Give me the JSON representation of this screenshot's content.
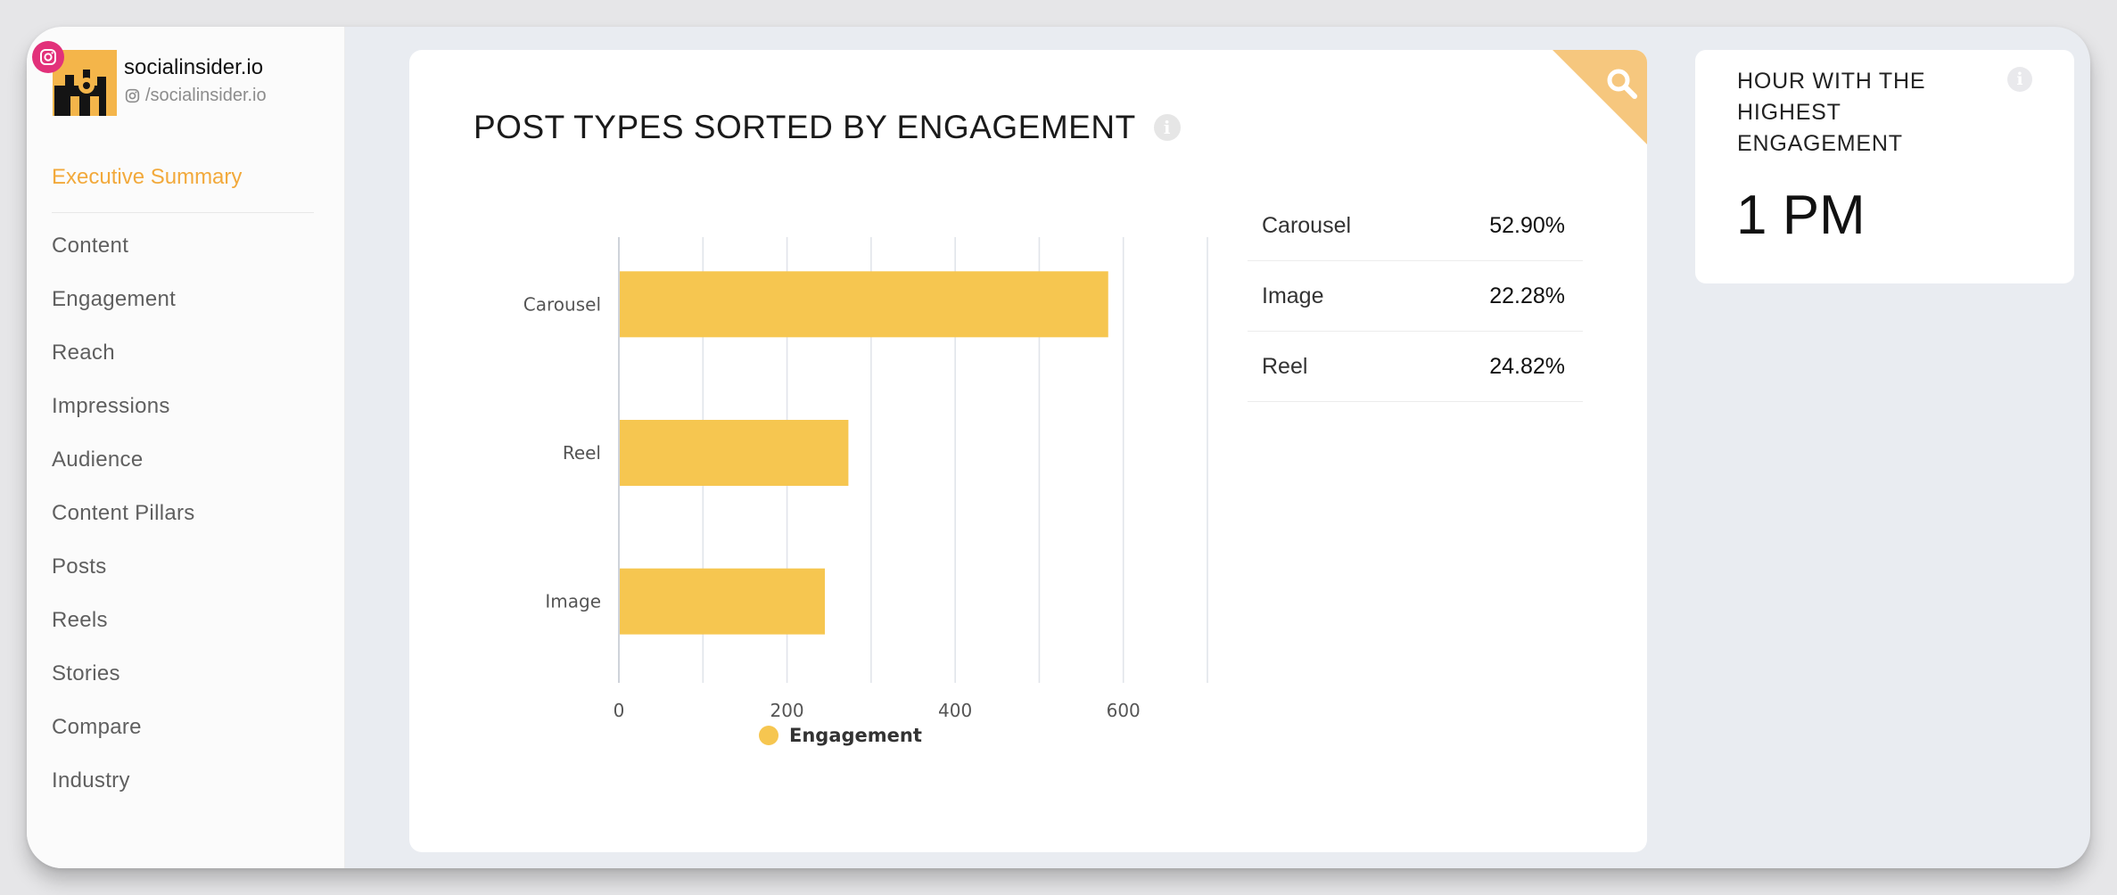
{
  "profile": {
    "name": "socialinsider.io",
    "handle": "/socialinsider.io",
    "platform_icon": "instagram-icon"
  },
  "sidebar": {
    "active_item": "Executive Summary",
    "items": [
      {
        "label": "Content"
      },
      {
        "label": "Engagement"
      },
      {
        "label": "Reach"
      },
      {
        "label": "Impressions"
      },
      {
        "label": "Audience"
      },
      {
        "label": "Content Pillars"
      },
      {
        "label": "Posts"
      },
      {
        "label": "Reels"
      },
      {
        "label": "Stories"
      },
      {
        "label": "Compare"
      },
      {
        "label": "Industry"
      }
    ]
  },
  "main_card": {
    "title": "POST TYPES SORTED BY ENGAGEMENT",
    "info_icon": "info-icon",
    "corner_icon": "search-icon"
  },
  "chart_data": {
    "type": "bar",
    "orientation": "horizontal",
    "categories": [
      "Carousel",
      "Reel",
      "Image"
    ],
    "series": [
      {
        "name": "Engagement",
        "values": [
          582,
          273,
          245
        ]
      }
    ],
    "xlim": [
      0,
      700
    ],
    "xticks": [
      0,
      200,
      400,
      600
    ],
    "grid": true,
    "legend": "bottom",
    "title": "",
    "xlabel": "",
    "ylabel": ""
  },
  "stats": [
    {
      "label": "Carousel",
      "value": "52.90%"
    },
    {
      "label": "Image",
      "value": "22.28%"
    },
    {
      "label": "Reel",
      "value": "24.82%"
    }
  ],
  "side_card": {
    "title": "HOUR WITH THE HIGHEST ENGAGEMENT",
    "value": "1 PM"
  },
  "colors": {
    "accent": "#f2a93b",
    "bar": "#f6c650",
    "corner": "#f6c77e",
    "instagram": "#e2317a"
  }
}
